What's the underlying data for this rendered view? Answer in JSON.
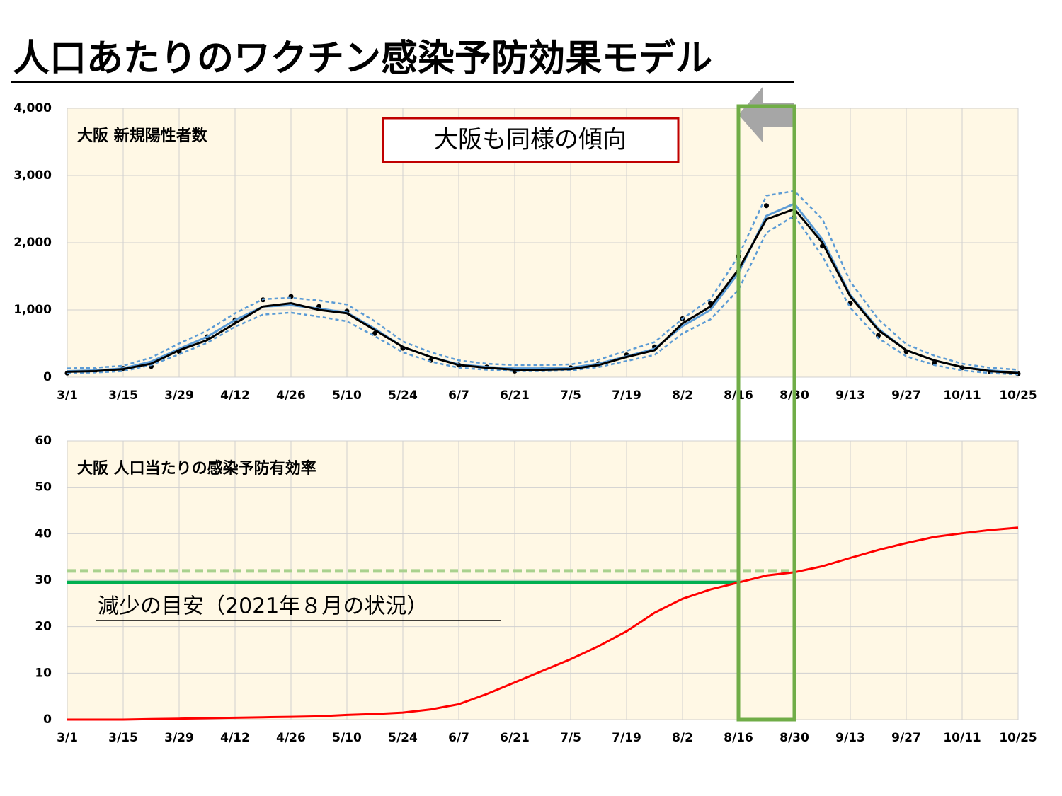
{
  "title": "人口あたりのワクチン感染予防効果モデル",
  "annotation": "大阪も同様の傾向",
  "highlight": {
    "from": "8/16",
    "to": "8/30",
    "color": "#70ad47"
  },
  "chart_data": [
    {
      "type": "line",
      "title": "大阪 新規陽性者数",
      "categories": [
        "3/1",
        null,
        "3/15",
        null,
        "3/29",
        null,
        "4/12",
        null,
        "4/26",
        null,
        "5/10",
        null,
        "5/24",
        null,
        "6/7",
        null,
        "6/21",
        null,
        "7/5",
        null,
        "7/19",
        null,
        "8/2",
        null,
        "8/16",
        null,
        "8/30",
        null,
        "9/13",
        null,
        "9/27",
        null,
        "10/11",
        null,
        "10/25"
      ],
      "ylim": [
        0,
        4000
      ],
      "yticks": [
        0,
        {
          "value": 1000,
          "label": "1,000"
        },
        {
          "value": 2000,
          "label": "2,000"
        },
        {
          "value": 3000,
          "label": "3,000"
        },
        {
          "value": 4000,
          "label": "4,000"
        }
      ],
      "grid": true,
      "series": [
        {
          "kind": "dots",
          "color": "#000000",
          "values": [
            60,
            100,
            130,
            160,
            380,
            600,
            850,
            1150,
            1200,
            1050,
            980,
            650,
            430,
            250,
            180,
            150,
            90,
            120,
            140,
            200,
            330,
            450,
            870,
            1100,
            1800,
            2550,
            2380,
            1950,
            1100,
            620,
            380,
            210,
            140,
            80,
            50
          ]
        },
        {
          "kind": "dashed",
          "color": "#5b9bd5",
          "values": [
            130,
            140,
            170,
            290,
            500,
            690,
            950,
            1160,
            1180,
            1140,
            1080,
            830,
            530,
            370,
            250,
            200,
            180,
            180,
            190,
            260,
            390,
            520,
            870,
            1160,
            1800,
            2700,
            2770,
            2350,
            1420,
            860,
            490,
            320,
            200,
            140,
            110
          ]
        },
        {
          "kind": "dashed",
          "color": "#5b9bd5",
          "values": [
            60,
            70,
            90,
            180,
            340,
            510,
            750,
            930,
            960,
            900,
            830,
            610,
            370,
            230,
            140,
            110,
            90,
            90,
            100,
            150,
            240,
            330,
            650,
            860,
            1300,
            2150,
            2400,
            1800,
            1030,
            580,
            310,
            180,
            100,
            60,
            40
          ]
        },
        {
          "kind": "solid",
          "color": "#5b9bd5",
          "values": [
            90,
            100,
            130,
            230,
            420,
            600,
            850,
            1050,
            1070,
            1020,
            960,
            720,
            450,
            300,
            190,
            150,
            130,
            130,
            140,
            200,
            310,
            420,
            760,
            1000,
            1550,
            2400,
            2580,
            2050,
            1220,
            720,
            400,
            250,
            150,
            100,
            70
          ]
        },
        {
          "kind": "solid",
          "color": "#000000",
          "values": [
            80,
            90,
            120,
            200,
            400,
            550,
            800,
            1050,
            1100,
            1000,
            950,
            700,
            450,
            300,
            180,
            140,
            110,
            110,
            120,
            180,
            300,
            400,
            800,
            1050,
            1600,
            2350,
            2500,
            2000,
            1200,
            700,
            400,
            250,
            150,
            90,
            60
          ]
        }
      ]
    },
    {
      "type": "line",
      "title": "大阪 人口当たりの感染予防有効率",
      "categories": [
        "3/1",
        null,
        "3/15",
        null,
        "3/29",
        null,
        "4/12",
        null,
        "4/26",
        null,
        "5/10",
        null,
        "5/24",
        null,
        "6/7",
        null,
        "6/21",
        null,
        "7/5",
        null,
        "7/19",
        null,
        "8/2",
        null,
        "8/16",
        null,
        "8/30",
        null,
        "9/13",
        null,
        "9/27",
        null,
        "10/11",
        null,
        "10/25"
      ],
      "ylim": [
        0,
        60
      ],
      "yticks": [
        0,
        10,
        20,
        30,
        40,
        50,
        60
      ],
      "grid": true,
      "series": [
        {
          "kind": "solid",
          "color": "#ff0000",
          "values": [
            0,
            0,
            0,
            0.1,
            0.2,
            0.3,
            0.4,
            0.5,
            0.6,
            0.7,
            1.0,
            1.2,
            1.5,
            2.2,
            3.3,
            5.5,
            8,
            10.5,
            13,
            15.8,
            19,
            23,
            26,
            28,
            29.5,
            31,
            31.7,
            33,
            34.8,
            36.5,
            38,
            39.3,
            40.1,
            40.8,
            41.3
          ]
        }
      ],
      "reference_lines": [
        {
          "value": 29.5,
          "end": "8/16",
          "color": "#00b050",
          "dash": false
        },
        {
          "value": 32,
          "end": "8/30",
          "color": "#a9d18e",
          "dash": true
        }
      ],
      "note": "減少の目安（2021年８月の状況）"
    }
  ]
}
